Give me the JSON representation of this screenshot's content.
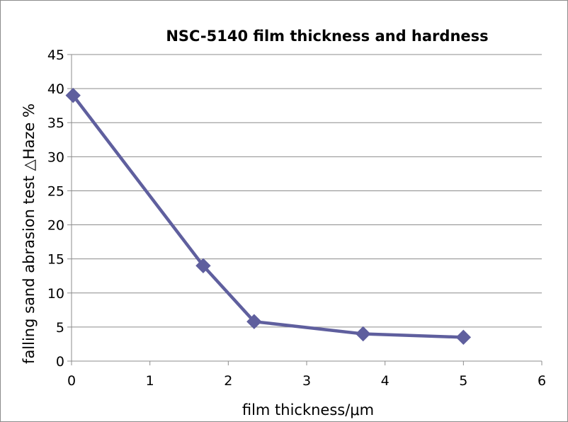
{
  "chart_data": {
    "type": "line",
    "title": "NSC-5140 film thickness and hardness",
    "xlabel": "film thickness/μm",
    "ylabel": "falling sand abrasion test  △Haze %",
    "xlim": [
      0,
      6
    ],
    "ylim": [
      0,
      45
    ],
    "x_ticks": [
      0,
      1,
      2,
      3,
      4,
      5,
      6
    ],
    "y_ticks": [
      0,
      5,
      10,
      15,
      20,
      25,
      30,
      35,
      40,
      45
    ],
    "grid": "horizontal",
    "legend": "none",
    "series": [
      {
        "x": [
          0.02,
          1.68,
          2.33,
          3.72,
          5.0
        ],
        "y": [
          39,
          14,
          5.8,
          4.0,
          3.5
        ],
        "color": "#5F5F9E",
        "marker": "diamond"
      }
    ]
  }
}
